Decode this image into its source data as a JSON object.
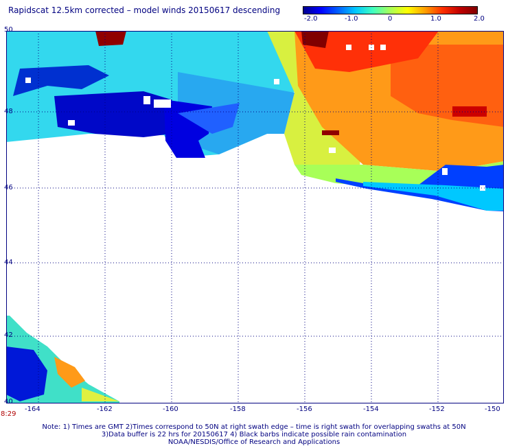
{
  "title": "Rapidscat 12.5km corrected – model winds 20150617 descending",
  "colorbar": {
    "ticks": [
      "-2.0",
      "-1.0",
      "0",
      "1.0",
      "2.0"
    ],
    "range": [
      -2.0,
      2.0
    ],
    "colors": [
      "#00008f",
      "#0000ff",
      "#0060ff",
      "#00c8ff",
      "#40ffc0",
      "#a8ff58",
      "#ffff00",
      "#ffa000",
      "#ff3000",
      "#c00000",
      "#800000"
    ]
  },
  "axes": {
    "lat_ticks": [
      "50",
      "48",
      "46",
      "44",
      "42",
      "40"
    ],
    "lon_ticks": [
      "-164",
      "-162",
      "-160",
      "-158",
      "-156",
      "-154",
      "-152",
      "-150"
    ],
    "lat_range": [
      40,
      50
    ],
    "lon_range": [
      -165,
      -150
    ],
    "grid": "dotted"
  },
  "time_label": "8:29",
  "notes": {
    "line1": "Note: 1) Times are GMT 2)Times correspond to 50N at right swath edge – time is right swath for overlapping swaths at 50N",
    "line2": "3)Data buffer is 22 hrs for 20150617 4) Black barbs indicate possible rain contamination",
    "line3": "NOAA/NESDIS/Office of Research and Applications"
  }
}
